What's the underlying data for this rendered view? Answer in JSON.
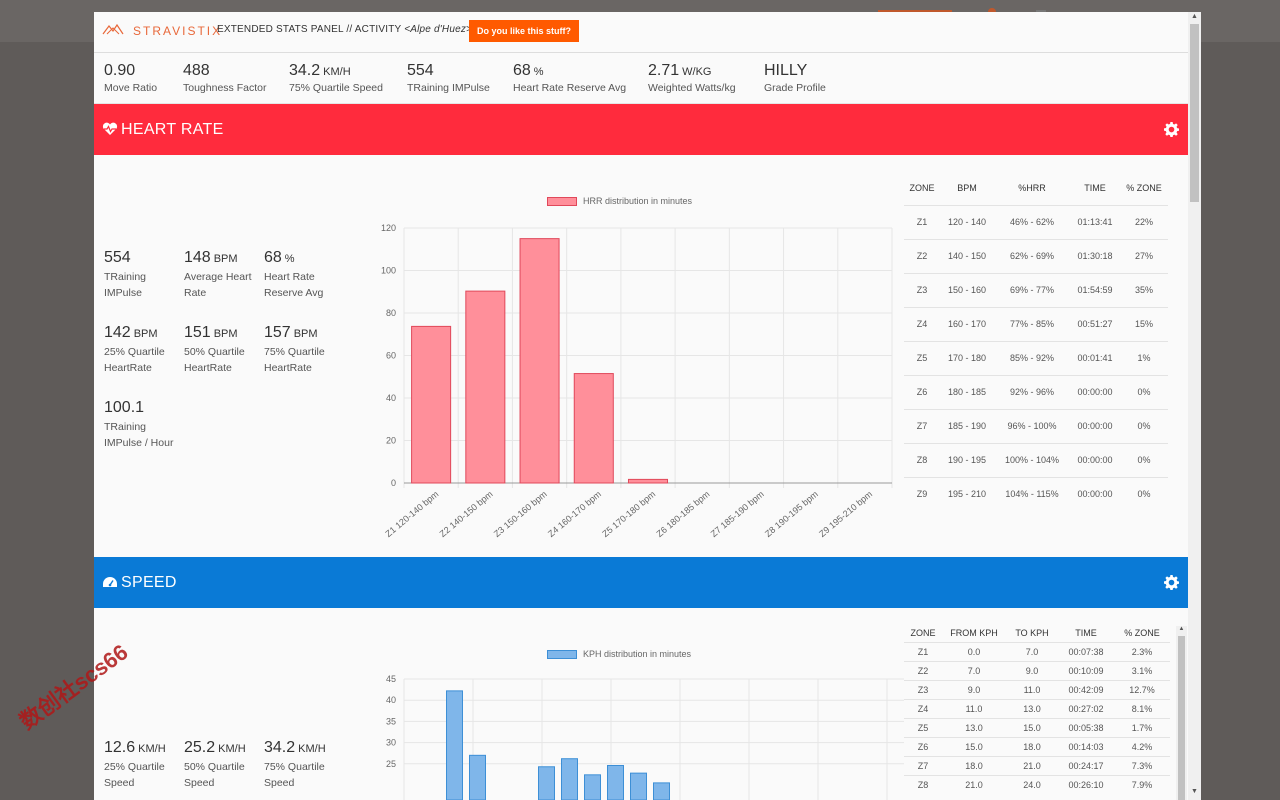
{
  "app": {
    "logo_text": "STRAVISTIX",
    "panel_title_prefix": "EXTENDED STATS PANEL // ACTIVITY ",
    "activity_name": "<Alpe d'Huez>",
    "like_button": "Do you like this stuff?",
    "close_icon": "close-icon"
  },
  "summary": [
    {
      "value": "0.90",
      "unit": "",
      "label": "Move Ratio"
    },
    {
      "value": "488",
      "unit": "",
      "label": "Toughness Factor"
    },
    {
      "value": "34.2",
      "unit": "KM/H",
      "label": "75% Quartile Speed"
    },
    {
      "value": "554",
      "unit": "",
      "label": "TRaining IMPulse"
    },
    {
      "value": "68",
      "unit": "%",
      "label": "Heart Rate Reserve Avg"
    },
    {
      "value": "2.71",
      "unit": "W/KG",
      "label": "Weighted Watts/kg"
    },
    {
      "value": "HILLY",
      "unit": "",
      "label": "Grade Profile"
    }
  ],
  "heart_rate": {
    "title": "HEART RATE",
    "icon": "heartbeat-icon",
    "gear_icon": "gear-icon",
    "metrics": [
      {
        "value": "554",
        "unit": "",
        "label1": "TRaining",
        "label2": "IMPulse"
      },
      {
        "value": "148",
        "unit": "BPM",
        "label1": "Average Heart",
        "label2": "Rate"
      },
      {
        "value": "68",
        "unit": "%",
        "label1": "Heart Rate",
        "label2": "Reserve Avg"
      },
      {
        "value": "142",
        "unit": "BPM",
        "label1": "25% Quartile",
        "label2": "HeartRate"
      },
      {
        "value": "151",
        "unit": "BPM",
        "label1": "50% Quartile",
        "label2": "HeartRate"
      },
      {
        "value": "157",
        "unit": "BPM",
        "label1": "75% Quartile",
        "label2": "HeartRate"
      },
      {
        "value": "100.1",
        "unit": "",
        "label1": "TRaining",
        "label2": "IMPulse / Hour"
      }
    ],
    "table": {
      "headers": [
        "ZONE",
        "BPM",
        "%HRR",
        "TIME",
        "% ZONE"
      ],
      "rows": [
        [
          "Z1",
          "120 - 140",
          "46% - 62%",
          "01:13:41",
          "22%"
        ],
        [
          "Z2",
          "140 - 150",
          "62% - 69%",
          "01:30:18",
          "27%"
        ],
        [
          "Z3",
          "150 - 160",
          "69% - 77%",
          "01:54:59",
          "35%"
        ],
        [
          "Z4",
          "160 - 170",
          "77% - 85%",
          "00:51:27",
          "15%"
        ],
        [
          "Z5",
          "170 - 180",
          "85% - 92%",
          "00:01:41",
          "1%"
        ],
        [
          "Z6",
          "180 - 185",
          "92% - 96%",
          "00:00:00",
          "0%"
        ],
        [
          "Z7",
          "185 - 190",
          "96% - 100%",
          "00:00:00",
          "0%"
        ],
        [
          "Z8",
          "190 - 195",
          "100% - 104%",
          "00:00:00",
          "0%"
        ],
        [
          "Z9",
          "195 - 210",
          "104% - 115%",
          "00:00:00",
          "0%"
        ]
      ]
    }
  },
  "speed": {
    "title": "SPEED",
    "icon": "speedometer-icon",
    "gear_icon": "gear-icon",
    "metrics": [
      {
        "value": "12.6",
        "unit": "KM/H",
        "label1": "25% Quartile",
        "label2": "Speed"
      },
      {
        "value": "25.2",
        "unit": "KM/H",
        "label1": "50% Quartile",
        "label2": "Speed"
      },
      {
        "value": "34.2",
        "unit": "KM/H",
        "label1": "75% Quartile",
        "label2": "Speed"
      }
    ],
    "table": {
      "headers": [
        "ZONE",
        "FROM KPH",
        "TO KPH",
        "TIME",
        "% ZONE"
      ],
      "rows": [
        [
          "Z1",
          "0.0",
          "7.0",
          "00:07:38",
          "2.3%"
        ],
        [
          "Z2",
          "7.0",
          "9.0",
          "00:10:09",
          "3.1%"
        ],
        [
          "Z3",
          "9.0",
          "11.0",
          "00:42:09",
          "12.7%"
        ],
        [
          "Z4",
          "11.0",
          "13.0",
          "00:27:02",
          "8.1%"
        ],
        [
          "Z5",
          "13.0",
          "15.0",
          "00:05:38",
          "1.7%"
        ],
        [
          "Z6",
          "15.0",
          "18.0",
          "00:14:03",
          "4.2%"
        ],
        [
          "Z7",
          "18.0",
          "21.0",
          "00:24:17",
          "7.3%"
        ],
        [
          "Z8",
          "21.0",
          "24.0",
          "00:26:10",
          "7.9%"
        ]
      ]
    }
  },
  "chart_data": [
    {
      "type": "bar",
      "legend": "HRR distribution in minutes",
      "categories": [
        "Z1 120-140 bpm",
        "Z2 140-150 bpm",
        "Z3 150-160 bpm",
        "Z4 160-170 bpm",
        "Z5 170-180 bpm",
        "Z6 180-185 bpm",
        "Z7 185-190 bpm",
        "Z8 190-195 bpm",
        "Z9 195-210 bpm"
      ],
      "series": [
        {
          "name": "HRR distribution in minutes",
          "values": [
            73.7,
            90.3,
            115.0,
            51.5,
            1.7,
            0,
            0,
            0,
            0
          ]
        }
      ],
      "ylim": [
        0,
        120
      ],
      "yticks": [
        0,
        20,
        40,
        60,
        80,
        100,
        120
      ],
      "color": "#ff8f9a",
      "border": "#e0485a"
    },
    {
      "type": "bar",
      "legend": "KPH distribution in minutes",
      "series": [
        {
          "name": "KPH distribution in minutes",
          "values": [
            42.2,
            27.0,
            24.3,
            26.2,
            22.4,
            24.6,
            22.8,
            20.5
          ]
        }
      ],
      "bar_slots": [
        3,
        4,
        7,
        8,
        9,
        10,
        11,
        12
      ],
      "ylim": [
        20,
        45
      ],
      "yticks": [
        25,
        30,
        35,
        40,
        45
      ],
      "color": "#7fb6ea",
      "border": "#3d8fd6"
    }
  ],
  "watermark": "数创社scs66"
}
